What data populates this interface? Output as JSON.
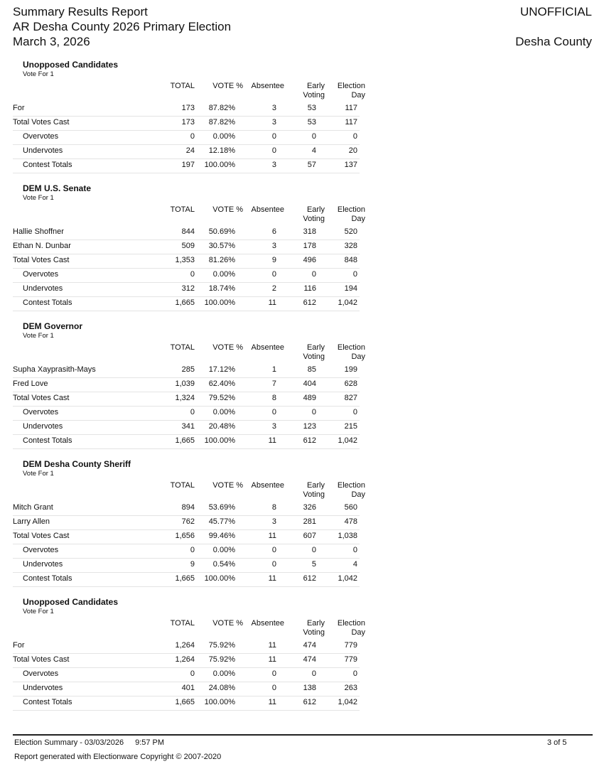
{
  "header": {
    "title": "Summary Results Report",
    "election": "AR Desha County 2026 Primary Election",
    "date": "March 3, 2026",
    "status": "UNOFFICIAL",
    "jurisdiction": "Desha County"
  },
  "columns": {
    "total": "TOTAL",
    "pct": "VOTE %",
    "absentee": "Absentee",
    "early1": "Early",
    "early2": "Voting",
    "eday1": "Election",
    "eday2": "Day"
  },
  "contests": [
    {
      "title": "Unopposed Candidates",
      "vote_for": "Vote For 1",
      "rows": [
        {
          "label": "For",
          "indent": false,
          "total": "173",
          "pct": "87.82%",
          "absentee": "3",
          "early": "53",
          "eday": "117"
        },
        {
          "label": "Total Votes Cast",
          "indent": false,
          "total": "173",
          "pct": "87.82%",
          "absentee": "3",
          "early": "53",
          "eday": "117"
        },
        {
          "label": "Overvotes",
          "indent": true,
          "total": "0",
          "pct": "0.00%",
          "absentee": "0",
          "early": "0",
          "eday": "0"
        },
        {
          "label": "Undervotes",
          "indent": true,
          "total": "24",
          "pct": "12.18%",
          "absentee": "0",
          "early": "4",
          "eday": "20"
        },
        {
          "label": "Contest Totals",
          "indent": true,
          "total": "197",
          "pct": "100.00%",
          "absentee": "3",
          "early": "57",
          "eday": "137"
        }
      ]
    },
    {
      "title": "DEM U.S. Senate",
      "vote_for": "Vote For 1",
      "rows": [
        {
          "label": "Hallie Shoffner",
          "indent": false,
          "total": "844",
          "pct": "50.69%",
          "absentee": "6",
          "early": "318",
          "eday": "520"
        },
        {
          "label": "Ethan N. Dunbar",
          "indent": false,
          "total": "509",
          "pct": "30.57%",
          "absentee": "3",
          "early": "178",
          "eday": "328"
        },
        {
          "label": "Total Votes Cast",
          "indent": false,
          "total": "1,353",
          "pct": "81.26%",
          "absentee": "9",
          "early": "496",
          "eday": "848"
        },
        {
          "label": "Overvotes",
          "indent": true,
          "total": "0",
          "pct": "0.00%",
          "absentee": "0",
          "early": "0",
          "eday": "0"
        },
        {
          "label": "Undervotes",
          "indent": true,
          "total": "312",
          "pct": "18.74%",
          "absentee": "2",
          "early": "116",
          "eday": "194"
        },
        {
          "label": "Contest Totals",
          "indent": true,
          "total": "1,665",
          "pct": "100.00%",
          "absentee": "11",
          "early": "612",
          "eday": "1,042"
        }
      ]
    },
    {
      "title": "DEM Governor",
      "vote_for": "Vote For 1",
      "rows": [
        {
          "label": "Supha Xayprasith-Mays",
          "indent": false,
          "total": "285",
          "pct": "17.12%",
          "absentee": "1",
          "early": "85",
          "eday": "199"
        },
        {
          "label": "Fred Love",
          "indent": false,
          "total": "1,039",
          "pct": "62.40%",
          "absentee": "7",
          "early": "404",
          "eday": "628"
        },
        {
          "label": "Total Votes Cast",
          "indent": false,
          "total": "1,324",
          "pct": "79.52%",
          "absentee": "8",
          "early": "489",
          "eday": "827"
        },
        {
          "label": "Overvotes",
          "indent": true,
          "total": "0",
          "pct": "0.00%",
          "absentee": "0",
          "early": "0",
          "eday": "0"
        },
        {
          "label": "Undervotes",
          "indent": true,
          "total": "341",
          "pct": "20.48%",
          "absentee": "3",
          "early": "123",
          "eday": "215"
        },
        {
          "label": "Contest Totals",
          "indent": true,
          "total": "1,665",
          "pct": "100.00%",
          "absentee": "11",
          "early": "612",
          "eday": "1,042"
        }
      ]
    },
    {
      "title": "DEM Desha County Sheriff",
      "vote_for": "Vote For 1",
      "rows": [
        {
          "label": "Mitch Grant",
          "indent": false,
          "total": "894",
          "pct": "53.69%",
          "absentee": "8",
          "early": "326",
          "eday": "560"
        },
        {
          "label": "Larry Allen",
          "indent": false,
          "total": "762",
          "pct": "45.77%",
          "absentee": "3",
          "early": "281",
          "eday": "478"
        },
        {
          "label": "Total Votes Cast",
          "indent": false,
          "total": "1,656",
          "pct": "99.46%",
          "absentee": "11",
          "early": "607",
          "eday": "1,038"
        },
        {
          "label": "Overvotes",
          "indent": true,
          "total": "0",
          "pct": "0.00%",
          "absentee": "0",
          "early": "0",
          "eday": "0"
        },
        {
          "label": "Undervotes",
          "indent": true,
          "total": "9",
          "pct": "0.54%",
          "absentee": "0",
          "early": "5",
          "eday": "4"
        },
        {
          "label": "Contest Totals",
          "indent": true,
          "total": "1,665",
          "pct": "100.00%",
          "absentee": "11",
          "early": "612",
          "eday": "1,042"
        }
      ]
    },
    {
      "title": "Unopposed Candidates",
      "vote_for": "Vote For 1",
      "rows": [
        {
          "label": "For",
          "indent": false,
          "total": "1,264",
          "pct": "75.92%",
          "absentee": "11",
          "early": "474",
          "eday": "779"
        },
        {
          "label": "Total Votes Cast",
          "indent": false,
          "total": "1,264",
          "pct": "75.92%",
          "absentee": "11",
          "early": "474",
          "eday": "779"
        },
        {
          "label": "Overvotes",
          "indent": true,
          "total": "0",
          "pct": "0.00%",
          "absentee": "0",
          "early": "0",
          "eday": "0"
        },
        {
          "label": "Undervotes",
          "indent": true,
          "total": "401",
          "pct": "24.08%",
          "absentee": "0",
          "early": "138",
          "eday": "263"
        },
        {
          "label": "Contest Totals",
          "indent": true,
          "total": "1,665",
          "pct": "100.00%",
          "absentee": "11",
          "early": "612",
          "eday": "1,042"
        }
      ]
    }
  ],
  "footer": {
    "summary": "Election Summary - 03/03/2026",
    "time": "9:57 PM",
    "page": "3 of 5",
    "generated": "Report generated with Electionware Copyright © 2007-2020"
  }
}
